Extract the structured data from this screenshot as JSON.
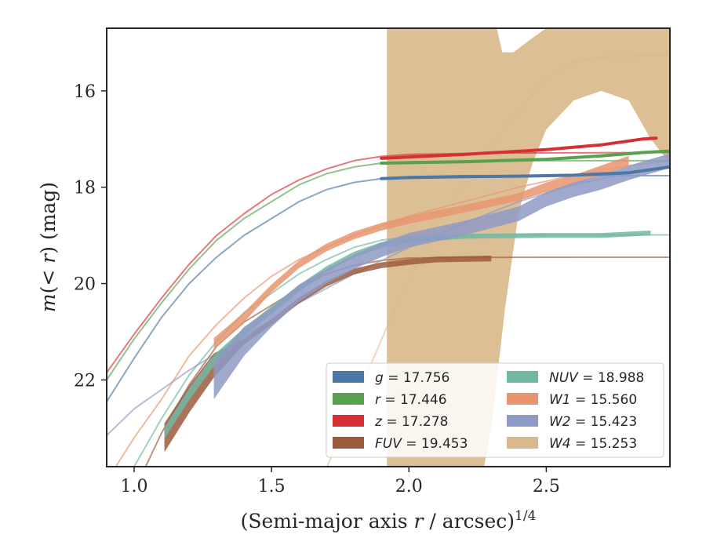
{
  "chart_data": {
    "type": "line",
    "xlabel": "(Semi-major axis r / arcsec)",
    "xlabel_parts": {
      "main": "(Semi-major axis ",
      "italic": "r",
      "rest": " / arcsec)",
      "sup": "1/4"
    },
    "ylabel_parts": {
      "m": "m",
      "open": "(",
      "lt_r": "< r",
      "close": ")",
      "unit": " (mag)"
    },
    "xlim": [
      0.9,
      2.95
    ],
    "ylim": [
      23.8,
      14.7
    ],
    "y_inverted": true,
    "xticks": [
      1.0,
      1.5,
      2.0,
      2.5
    ],
    "xtick_labels": [
      "1.0",
      "1.5",
      "2.0",
      "2.5"
    ],
    "yticks": [
      16,
      18,
      20,
      22
    ],
    "ytick_labels": [
      "16",
      "18",
      "20",
      "22"
    ],
    "grid": false,
    "legend_position": "lower-right",
    "series": [
      {
        "name": "g",
        "label_value": "= 17.756",
        "color": "#4c78a8",
        "model": [
          [
            0.9,
            22.45
          ],
          [
            1.0,
            21.55
          ],
          [
            1.1,
            20.7
          ],
          [
            1.2,
            20.0
          ],
          [
            1.3,
            19.45
          ],
          [
            1.4,
            19.0
          ],
          [
            1.5,
            18.65
          ],
          [
            1.6,
            18.3
          ],
          [
            1.7,
            18.05
          ],
          [
            1.8,
            17.9
          ],
          [
            1.9,
            17.82
          ],
          [
            2.0,
            17.78
          ],
          [
            2.2,
            17.76
          ],
          [
            2.5,
            17.76
          ],
          [
            2.95,
            17.76
          ]
        ],
        "data": [
          [
            1.9,
            17.82
          ],
          [
            2.0,
            17.8
          ],
          [
            2.2,
            17.78
          ],
          [
            2.4,
            17.77
          ],
          [
            2.6,
            17.75
          ],
          [
            2.8,
            17.7
          ],
          [
            2.95,
            17.58
          ]
        ]
      },
      {
        "name": "r",
        "label_value": "= 17.446",
        "color": "#59a14f",
        "model": [
          [
            0.9,
            22.0
          ],
          [
            1.0,
            21.15
          ],
          [
            1.1,
            20.4
          ],
          [
            1.2,
            19.7
          ],
          [
            1.3,
            19.1
          ],
          [
            1.4,
            18.65
          ],
          [
            1.5,
            18.3
          ],
          [
            1.6,
            17.95
          ],
          [
            1.7,
            17.72
          ],
          [
            1.8,
            17.58
          ],
          [
            1.9,
            17.5
          ],
          [
            2.0,
            17.47
          ],
          [
            2.3,
            17.45
          ],
          [
            2.95,
            17.45
          ]
        ],
        "data": [
          [
            1.9,
            17.5
          ],
          [
            2.2,
            17.47
          ],
          [
            2.5,
            17.42
          ],
          [
            2.7,
            17.35
          ],
          [
            2.85,
            17.28
          ],
          [
            2.95,
            17.25
          ]
        ]
      },
      {
        "name": "z",
        "label_value": "= 17.278",
        "color": "#d62f36",
        "model": [
          [
            0.9,
            21.85
          ],
          [
            1.0,
            21.05
          ],
          [
            1.1,
            20.3
          ],
          [
            1.2,
            19.6
          ],
          [
            1.3,
            19.0
          ],
          [
            1.4,
            18.55
          ],
          [
            1.5,
            18.15
          ],
          [
            1.6,
            17.85
          ],
          [
            1.7,
            17.62
          ],
          [
            1.8,
            17.45
          ],
          [
            1.9,
            17.36
          ],
          [
            2.0,
            17.32
          ],
          [
            2.3,
            17.29
          ],
          [
            2.95,
            17.28
          ]
        ],
        "data": [
          [
            1.9,
            17.4
          ],
          [
            2.2,
            17.32
          ],
          [
            2.5,
            17.22
          ],
          [
            2.7,
            17.12
          ],
          [
            2.85,
            17.0
          ],
          [
            2.9,
            16.98
          ]
        ]
      },
      {
        "name": "FUV",
        "label_value": "= 19.453",
        "color": "#9c5a3c",
        "model": [
          [
            0.9,
            25.5
          ],
          [
            1.0,
            24.3
          ],
          [
            1.1,
            23.1
          ],
          [
            1.2,
            22.1
          ],
          [
            1.3,
            21.3
          ],
          [
            1.4,
            20.8
          ],
          [
            1.5,
            20.45
          ],
          [
            1.6,
            20.1
          ],
          [
            1.7,
            19.8
          ],
          [
            1.8,
            19.62
          ],
          [
            1.9,
            19.52
          ],
          [
            2.0,
            19.47
          ],
          [
            2.3,
            19.455
          ],
          [
            2.95,
            19.453
          ]
        ],
        "data": [
          [
            1.11,
            23.2
          ],
          [
            1.2,
            22.4
          ],
          [
            1.29,
            21.7
          ],
          [
            1.4,
            21.2
          ],
          [
            1.5,
            20.8
          ],
          [
            1.6,
            20.35
          ],
          [
            1.7,
            20.0
          ],
          [
            1.8,
            19.75
          ],
          [
            1.9,
            19.62
          ],
          [
            2.0,
            19.55
          ],
          [
            2.1,
            19.5
          ],
          [
            2.3,
            19.48
          ]
        ],
        "band_width": [
          0.3,
          0.28,
          0.25,
          0.06,
          0.06,
          0.06,
          0.06,
          0.06,
          0.06,
          0.06,
          0.06,
          0.06
        ]
      },
      {
        "name": "NUV",
        "label_value": "= 18.988",
        "color": "#72b7a3",
        "model": [
          [
            0.9,
            25.0
          ],
          [
            1.0,
            23.8
          ],
          [
            1.1,
            22.8
          ],
          [
            1.2,
            21.9
          ],
          [
            1.3,
            21.2
          ],
          [
            1.4,
            20.6
          ],
          [
            1.5,
            20.2
          ],
          [
            1.6,
            19.8
          ],
          [
            1.7,
            19.5
          ],
          [
            1.8,
            19.25
          ],
          [
            1.9,
            19.1
          ],
          [
            2.0,
            19.03
          ],
          [
            2.3,
            18.99
          ],
          [
            2.95,
            18.99
          ]
        ],
        "data": [
          [
            1.11,
            23.1
          ],
          [
            1.2,
            22.3
          ],
          [
            1.29,
            21.6
          ],
          [
            1.4,
            21.0
          ],
          [
            1.5,
            20.55
          ],
          [
            1.6,
            20.1
          ],
          [
            1.7,
            19.7
          ],
          [
            1.8,
            19.4
          ],
          [
            1.9,
            19.2
          ],
          [
            2.0,
            19.1
          ],
          [
            2.2,
            19.02
          ],
          [
            2.5,
            19.0
          ],
          [
            2.7,
            19.0
          ],
          [
            2.88,
            18.95
          ]
        ],
        "band_width": [
          0.12,
          0.12,
          0.12,
          0.08,
          0.08,
          0.07,
          0.06,
          0.06,
          0.06,
          0.05,
          0.05,
          0.05,
          0.05,
          0.05
        ]
      },
      {
        "name": "W1",
        "label_value": "= 15.560",
        "color": "#e8956f",
        "model": [
          [
            0.9,
            24.1
          ],
          [
            1.0,
            23.2
          ],
          [
            1.1,
            22.4
          ],
          [
            1.2,
            21.5
          ],
          [
            1.3,
            20.85
          ],
          [
            1.4,
            20.3
          ],
          [
            1.5,
            19.85
          ],
          [
            1.6,
            19.5
          ],
          [
            1.7,
            19.25
          ],
          [
            1.8,
            19.0
          ],
          [
            1.9,
            18.8
          ],
          [
            2.0,
            18.6
          ],
          [
            2.2,
            18.3
          ],
          [
            2.4,
            18.0
          ],
          [
            2.6,
            17.75
          ],
          [
            2.8,
            17.55
          ],
          [
            2.95,
            17.45
          ]
        ],
        "data": [
          [
            1.29,
            21.25
          ],
          [
            1.4,
            20.7
          ],
          [
            1.5,
            20.1
          ],
          [
            1.6,
            19.6
          ],
          [
            1.7,
            19.25
          ],
          [
            1.8,
            19.0
          ],
          [
            1.9,
            18.82
          ],
          [
            2.0,
            18.68
          ],
          [
            2.2,
            18.45
          ],
          [
            2.4,
            18.2
          ],
          [
            2.5,
            18.0
          ],
          [
            2.6,
            17.85
          ],
          [
            2.7,
            17.65
          ],
          [
            2.8,
            17.45
          ]
        ],
        "band_width": [
          0.12,
          0.1,
          0.08,
          0.08,
          0.08,
          0.08,
          0.08,
          0.08,
          0.08,
          0.08,
          0.1,
          0.1,
          0.1,
          0.1
        ]
      },
      {
        "name": "W2",
        "label_value": "= 15.423",
        "color": "#8e9ac6",
        "model": [
          [
            0.9,
            23.15
          ],
          [
            1.0,
            22.6
          ],
          [
            1.2,
            21.8
          ],
          [
            1.4,
            21.1
          ],
          [
            1.6,
            20.4
          ],
          [
            1.8,
            19.8
          ],
          [
            2.0,
            19.25
          ],
          [
            2.2,
            18.75
          ],
          [
            2.4,
            18.3
          ],
          [
            2.6,
            17.95
          ],
          [
            2.8,
            17.7
          ],
          [
            2.95,
            17.55
          ]
        ],
        "data": [
          [
            1.29,
            22.0
          ],
          [
            1.4,
            21.2
          ],
          [
            1.5,
            20.7
          ],
          [
            1.6,
            20.2
          ],
          [
            1.7,
            19.85
          ],
          [
            1.8,
            19.55
          ],
          [
            1.9,
            19.3
          ],
          [
            2.0,
            19.1
          ],
          [
            2.2,
            18.85
          ],
          [
            2.4,
            18.55
          ],
          [
            2.5,
            18.25
          ],
          [
            2.6,
            18.05
          ],
          [
            2.7,
            17.9
          ],
          [
            2.8,
            17.7
          ],
          [
            2.95,
            17.45
          ]
        ],
        "band_width": [
          0.4,
          0.3,
          0.2,
          0.18,
          0.15,
          0.15,
          0.15,
          0.15,
          0.15,
          0.15,
          0.15,
          0.15,
          0.15,
          0.15,
          0.15
        ]
      },
      {
        "name": "W4",
        "label_value": "= 15.253",
        "color": "#d9b88b",
        "model": [
          [
            1.65,
            24.5
          ],
          [
            1.8,
            22.5
          ],
          [
            1.95,
            20.5
          ],
          [
            2.1,
            18.8
          ],
          [
            2.25,
            17.5
          ],
          [
            2.4,
            16.4
          ],
          [
            2.5,
            15.75
          ],
          [
            2.6,
            15.4
          ],
          [
            2.7,
            15.3
          ],
          [
            2.95,
            15.25
          ]
        ],
        "band_x": [
          1.92,
          2.0,
          2.1,
          2.2,
          2.25,
          2.3,
          2.35,
          2.4,
          2.45,
          2.5,
          2.6,
          2.7,
          2.8,
          2.88,
          2.95
        ],
        "band_lower": [
          25,
          25,
          25,
          25,
          24.5,
          23.0,
          20.5,
          18.5,
          17.5,
          16.8,
          16.2,
          16.0,
          16.2,
          17.0,
          17.5
        ],
        "band_upper": [
          12,
          12,
          12,
          12,
          12,
          12,
          12,
          12,
          12,
          12,
          12,
          12,
          12,
          12,
          12
        ],
        "band_top_cutout": [
          [
            2.32,
            14.7
          ],
          [
            2.34,
            15.2
          ],
          [
            2.38,
            15.2
          ],
          [
            2.45,
            14.9
          ],
          [
            2.5,
            14.7
          ]
        ]
      }
    ]
  }
}
